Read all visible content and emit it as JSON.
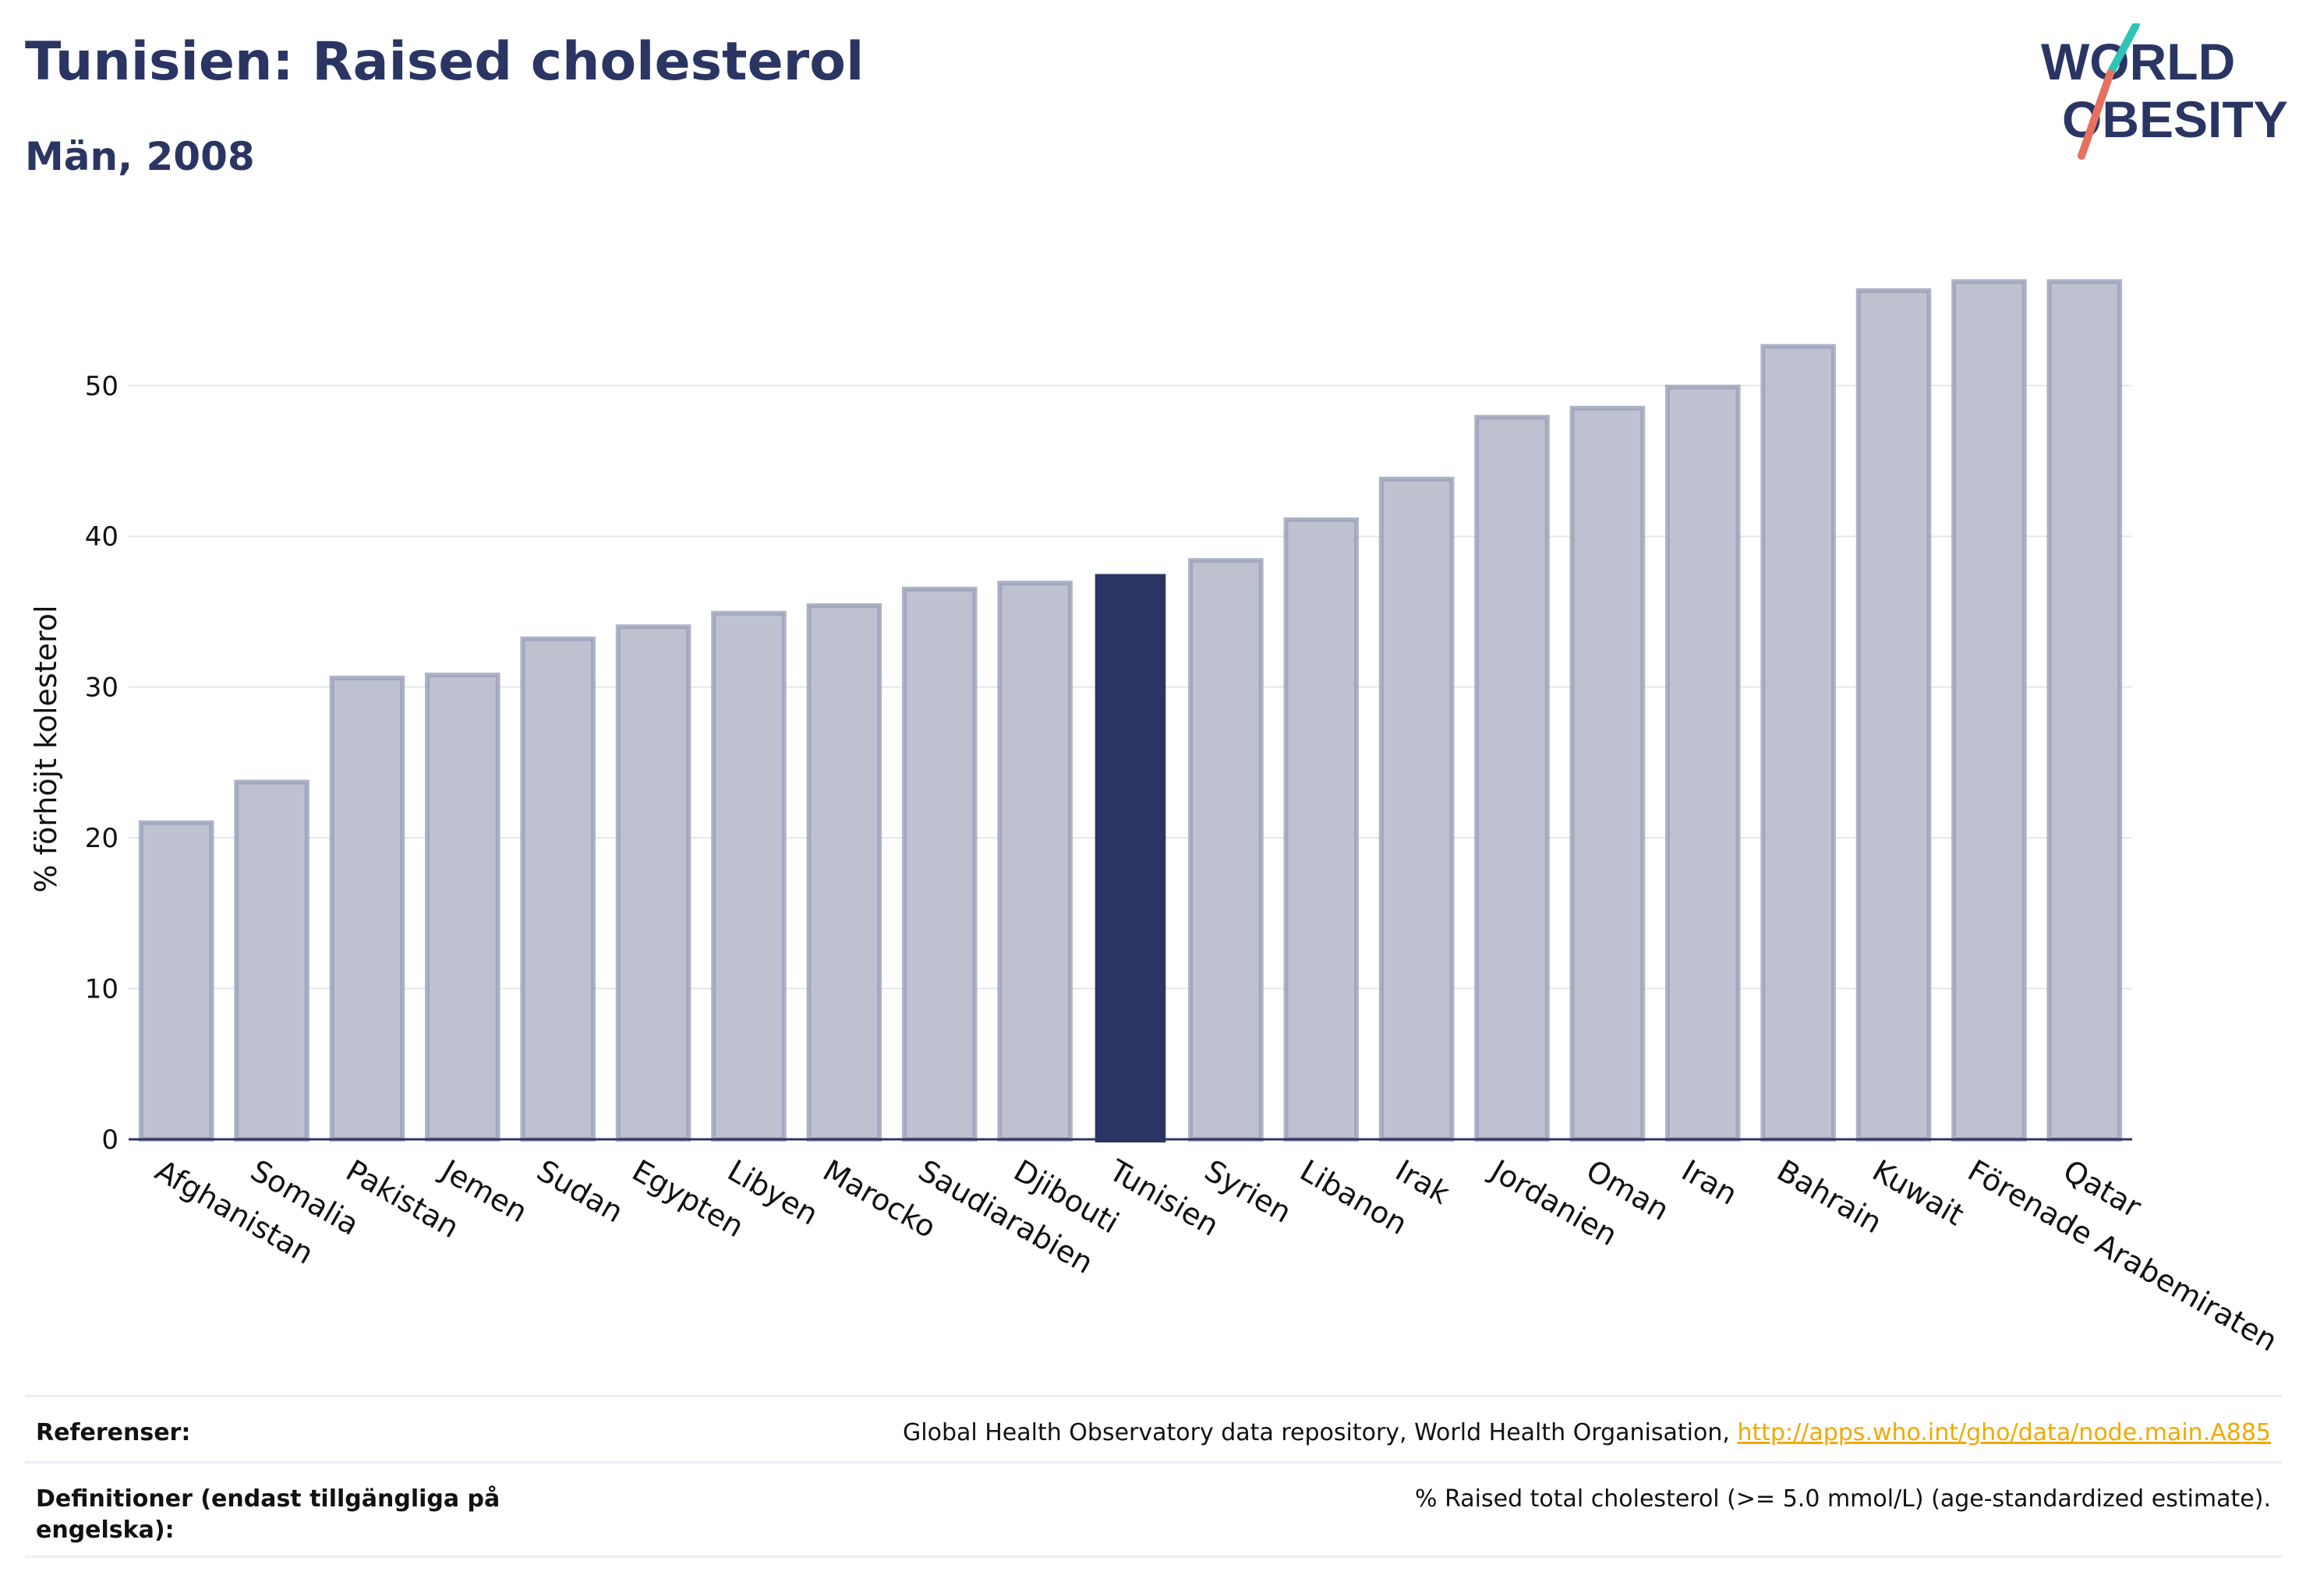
{
  "header": {
    "title": "Tunisien: Raised cholesterol",
    "subtitle": "Män, 2008"
  },
  "logo": {
    "line1": "WORLD",
    "line2": "OBESITY",
    "slash_colors": [
      "#2ec4b6",
      "#e8705f"
    ]
  },
  "colors": {
    "bar": "#bec2d0",
    "bar_border": "#9aa0b8",
    "highlight": "#2b3563",
    "grid": "#e6e7ec",
    "axis": "#2b3563"
  },
  "chart_data": {
    "type": "bar",
    "title": "Tunisien: Raised cholesterol",
    "subtitle": "Män, 2008",
    "ylabel": "% förhöjt kolesterol",
    "xlabel": "",
    "ylim": [
      0,
      58
    ],
    "yticks": [
      0,
      10,
      20,
      30,
      40,
      50
    ],
    "grid": true,
    "highlight": "Tunisien",
    "categories": [
      "Afghanistan",
      "Somalia",
      "Pakistan",
      "Jemen",
      "Sudan",
      "Egypten",
      "Libyen",
      "Marocko",
      "Saudiarabien",
      "Djibouti",
      "Tunisien",
      "Syrien",
      "Libanon",
      "Irak",
      "Jordanien",
      "Oman",
      "Iran",
      "Bahrain",
      "Kuwait",
      "Förenade Arabemiraten",
      "Qatar"
    ],
    "values": [
      21.0,
      23.7,
      30.6,
      30.8,
      33.2,
      34.0,
      34.9,
      35.4,
      36.5,
      36.9,
      37.5,
      38.4,
      41.1,
      43.8,
      47.9,
      48.5,
      49.9,
      52.6,
      56.3,
      56.9,
      56.9
    ]
  },
  "references": {
    "ref_label": "Referenser:",
    "ref_text": "Global Health Observatory data repository, World Health Organisation, ",
    "ref_link": "http://apps.who.int/gho/data/node.main.A885",
    "def_label": "Definitioner (endast tillgängliga på engelska):",
    "def_text": "% Raised total cholesterol (>= 5.0 mmol/L) (age-standardized estimate)."
  }
}
